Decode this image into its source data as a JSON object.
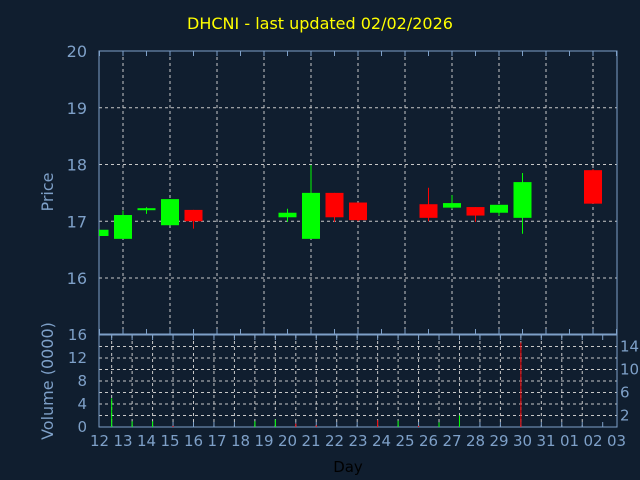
{
  "chart_data": [
    {
      "type": "candlestick",
      "title": "DHCNI - last updated 02/02/2026",
      "ylabel": "Price",
      "ylim": [
        15,
        20
      ],
      "yticks": [
        "16",
        "17",
        "18",
        "19",
        "20"
      ],
      "grid": true,
      "colors": {
        "up": "#00ff00",
        "down": "#ff0000",
        "axis": "#7ea0c8",
        "grid": "#c8c8c8",
        "title": "#ffff00",
        "background": "#101e2f"
      },
      "categories": [
        "12",
        "13",
        "14",
        "15",
        "16",
        "17",
        "18",
        "19",
        "20",
        "21",
        "22",
        "23",
        "24",
        "25",
        "26",
        "27",
        "28",
        "29",
        "30",
        "31",
        "01",
        "02",
        "03"
      ],
      "candles": [
        {
          "day": "12",
          "open": 16.74,
          "high": 16.85,
          "low": 16.74,
          "close": 16.85
        },
        {
          "day": "13",
          "open": 16.69,
          "high": 17.19,
          "low": 16.69,
          "close": 17.11
        },
        {
          "day": "14",
          "open": 17.2,
          "high": 17.25,
          "low": 17.13,
          "close": 17.23
        },
        {
          "day": "15",
          "open": 16.93,
          "high": 17.39,
          "low": 16.93,
          "close": 17.39
        },
        {
          "day": "16",
          "open": 17.2,
          "high": 17.2,
          "low": 16.87,
          "close": 17.0
        },
        {
          "day": "20",
          "open": 17.07,
          "high": 17.22,
          "low": 16.99,
          "close": 17.15
        },
        {
          "day": "21",
          "open": 16.69,
          "high": 17.99,
          "low": 16.69,
          "close": 17.5
        },
        {
          "day": "22",
          "open": 17.5,
          "high": 17.5,
          "low": 16.99,
          "close": 17.07
        },
        {
          "day": "23",
          "open": 17.33,
          "high": 17.33,
          "low": 17.0,
          "close": 17.02
        },
        {
          "day": "26",
          "open": 17.3,
          "high": 17.59,
          "low": 17.0,
          "close": 17.06
        },
        {
          "day": "27",
          "open": 17.24,
          "high": 17.46,
          "low": 17.22,
          "close": 17.32
        },
        {
          "day": "28",
          "open": 17.25,
          "high": 17.25,
          "low": 16.99,
          "close": 17.1
        },
        {
          "day": "29",
          "open": 17.15,
          "high": 17.29,
          "low": 17.1,
          "close": 17.29
        },
        {
          "day": "30",
          "open": 17.06,
          "high": 17.85,
          "low": 16.78,
          "close": 17.69
        },
        {
          "day": "02",
          "open": 17.9,
          "high": 17.92,
          "low": 17.31,
          "close": 17.31
        }
      ]
    },
    {
      "type": "bar",
      "xlabel": "Day",
      "ylabel": "Volume (0000)",
      "ylim": [
        0,
        16
      ],
      "yticks": [
        "0",
        "2",
        "4",
        "6",
        "8",
        "10",
        "12",
        "14",
        "16"
      ],
      "grid": true,
      "bars": [
        {
          "day": "13",
          "value": 5.0,
          "direction": "up"
        },
        {
          "day": "14",
          "value": 1.0,
          "direction": "up"
        },
        {
          "day": "15",
          "value": 1.0,
          "direction": "up"
        },
        {
          "day": "16",
          "value": 0.2,
          "direction": "down"
        },
        {
          "day": "20",
          "value": 1.0,
          "direction": "up"
        },
        {
          "day": "21",
          "value": 1.3,
          "direction": "up"
        },
        {
          "day": "22",
          "value": 0.6,
          "direction": "down"
        },
        {
          "day": "23",
          "value": 0.3,
          "direction": "down"
        },
        {
          "day": "26",
          "value": 1.2,
          "direction": "down"
        },
        {
          "day": "27",
          "value": 1.1,
          "direction": "up"
        },
        {
          "day": "28",
          "value": 0.2,
          "direction": "down"
        },
        {
          "day": "29",
          "value": 0.8,
          "direction": "up"
        },
        {
          "day": "30",
          "value": 2.0,
          "direction": "up"
        },
        {
          "day": "02",
          "value": 14.7,
          "direction": "down"
        }
      ]
    }
  ]
}
